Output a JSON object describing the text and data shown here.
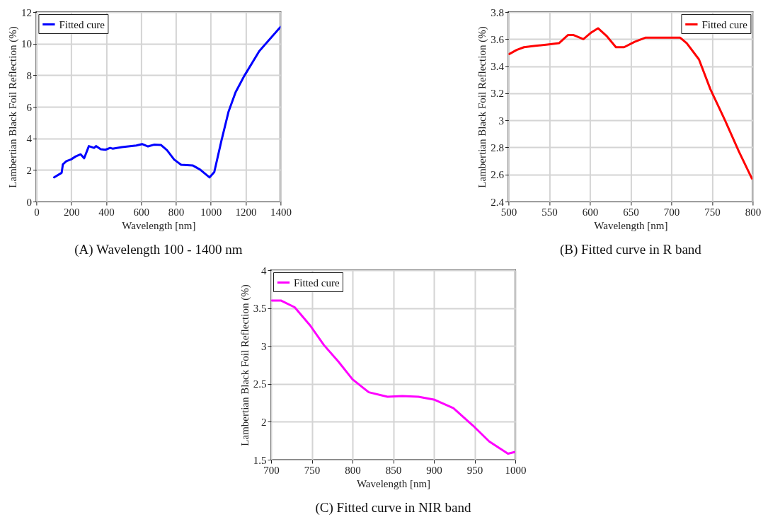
{
  "chart_data": [
    {
      "type": "line",
      "title": "(A) Wavelength 100 - 1400 nm",
      "xlabel": "Wavelength [nm]",
      "ylabel": "Lambertian Black Foil Reflection (%)",
      "xlim": [
        0,
        1400
      ],
      "xticks": [
        0,
        200,
        400,
        600,
        800,
        1000,
        1200,
        1400
      ],
      "ylim": [
        0,
        12
      ],
      "yticks": [
        0,
        2,
        4,
        6,
        8,
        10,
        12
      ],
      "grid": true,
      "legend": "top left",
      "series": [
        {
          "name": "Fitted cure",
          "color": "#0000ff",
          "x": [
            102,
            145,
            152,
            172,
            199,
            226,
            254,
            274,
            301,
            331,
            342,
            369,
            396,
            423,
            437,
            491,
            573,
            606,
            640,
            674,
            715,
            749,
            790,
            830,
            898,
            939,
            993,
            1020,
            1061,
            1102,
            1142,
            1190,
            1278,
            1400
          ],
          "values": [
            1.53,
            1.82,
            2.36,
            2.56,
            2.67,
            2.86,
            2.99,
            2.74,
            3.51,
            3.4,
            3.51,
            3.31,
            3.28,
            3.4,
            3.35,
            3.45,
            3.55,
            3.64,
            3.49,
            3.6,
            3.58,
            3.25,
            2.66,
            2.33,
            2.28,
            2.02,
            1.53,
            1.87,
            3.86,
            5.7,
            6.92,
            7.92,
            9.53,
            11.06
          ]
        }
      ]
    },
    {
      "type": "line",
      "title": "(B) Fitted curve in R band",
      "xlabel": "Wavelength [nm]",
      "ylabel": "Lambertian Black Foil Reflection (%)",
      "xlim": [
        500,
        800
      ],
      "xticks": [
        500,
        550,
        600,
        650,
        700,
        750,
        800
      ],
      "ylim": [
        2.4,
        3.8
      ],
      "yticks": [
        2.4,
        2.6,
        2.8,
        3,
        3.2,
        3.4,
        3.6,
        3.8
      ],
      "grid": true,
      "legend": "top right",
      "series": [
        {
          "name": "Fitted cure",
          "color": "#ff0000",
          "x": [
            501,
            510,
            519,
            533,
            548,
            562,
            573,
            580,
            592,
            602,
            610,
            621,
            632,
            642,
            655,
            668,
            711,
            719,
            734,
            748,
            766,
            783,
            799
          ],
          "values": [
            3.49,
            3.52,
            3.54,
            3.55,
            3.56,
            3.57,
            3.63,
            3.63,
            3.6,
            3.65,
            3.68,
            3.62,
            3.54,
            3.54,
            3.58,
            3.61,
            3.61,
            3.57,
            3.45,
            3.23,
            3.0,
            2.77,
            2.57
          ]
        }
      ]
    },
    {
      "type": "line",
      "title": "(C) Fitted curve in NIR band",
      "xlabel": "Wavelength [nm]",
      "ylabel": "Lambertian Black Foil Reflection (%)",
      "xlim": [
        700,
        1000
      ],
      "xticks": [
        700,
        750,
        800,
        850,
        900,
        950,
        1000
      ],
      "ylim": [
        1.5,
        4
      ],
      "yticks": [
        1.5,
        2,
        2.5,
        3,
        3.5,
        4
      ],
      "grid": true,
      "legend": "top left",
      "series": [
        {
          "name": "Fitted cure",
          "color": "#ff00ff",
          "x": [
            701,
            712,
            729,
            748,
            765,
            783,
            800,
            820,
            843,
            861,
            881,
            901,
            924,
            948,
            968,
            991,
            999
          ],
          "values": [
            3.6,
            3.6,
            3.51,
            3.27,
            3.01,
            2.79,
            2.56,
            2.39,
            2.33,
            2.34,
            2.33,
            2.29,
            2.18,
            1.95,
            1.74,
            1.58,
            1.6
          ]
        }
      ]
    }
  ]
}
